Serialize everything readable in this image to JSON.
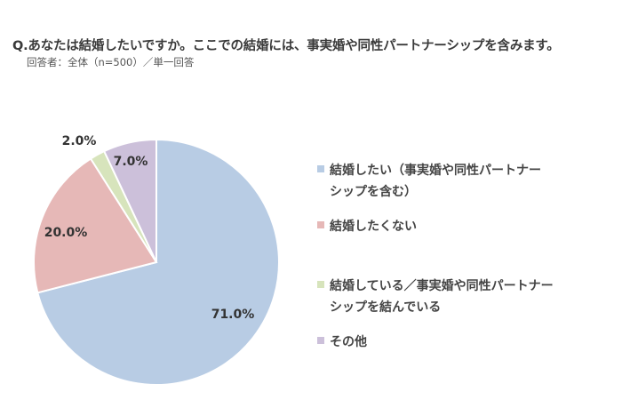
{
  "header": {
    "question": "Q.あなたは結婚したいですか。ここでの結婚には、事実婚や同性パートナーシップを含みます。",
    "respondents": "回答者：全体（n=500）／単一回答"
  },
  "chart_data": {
    "type": "pie",
    "title": "",
    "start_angle": "12 o'clock",
    "direction": "clockwise",
    "slices": [
      {
        "label": "結婚したい（事実婚や同性パートナーシップを含む）",
        "label_lines": [
          "結婚したい（事実婚や同性パートナー",
          "シップを含む）"
        ],
        "value": 71.0,
        "value_label": "71.0%",
        "color": "#b8cce4"
      },
      {
        "label": "結婚したくない",
        "label_lines": [
          "結婚したくない"
        ],
        "value": 20.0,
        "value_label": "20.0%",
        "color": "#e6b8b7"
      },
      {
        "label": "結婚している／事実婚や同性パートナーシップを結んでいる",
        "label_lines": [
          "結婚している／事実婚や同性パートナー",
          "シップを結んでいる"
        ],
        "value": 2.0,
        "value_label": "2.0%",
        "color": "#d7e4bc"
      },
      {
        "label": "その他",
        "label_lines": [
          "その他"
        ],
        "value": 7.0,
        "value_label": "7.0%",
        "color": "#ccc0da"
      }
    ],
    "legend_position": "right"
  }
}
